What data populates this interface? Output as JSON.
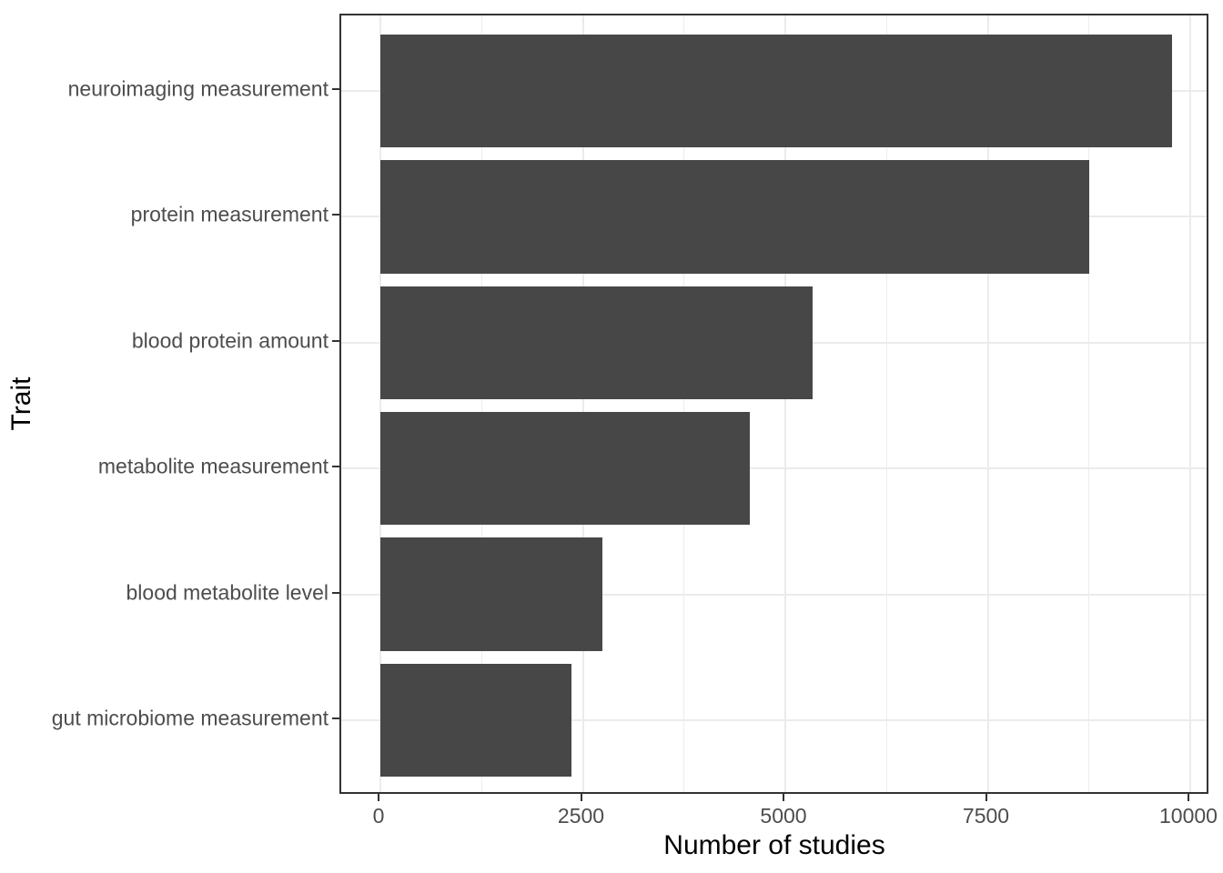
{
  "figure": {
    "background": "#ffffff"
  },
  "chart_data": {
    "type": "bar",
    "orientation": "horizontal",
    "title": "",
    "xlabel": "Number of studies",
    "ylabel": "Trait",
    "categories": [
      "neuroimaging measurement",
      "protein measurement",
      "blood protein amount",
      "metabolite measurement",
      "blood metabolite level",
      "gut microbiome measurement"
    ],
    "values": [
      9780,
      8750,
      5340,
      4560,
      2740,
      2360
    ],
    "xlim": [
      0,
      10000
    ],
    "x_ticks": [
      0,
      2500,
      5000,
      7500,
      10000
    ],
    "x_tick_labels": [
      "0",
      "2500",
      "5000",
      "7500",
      "10000"
    ],
    "x_minor_ticks": [
      1250,
      3750,
      6250,
      8750
    ],
    "grid": "major-x, minor-x, major-y",
    "legend": false,
    "colors": {
      "bar": "#474747",
      "panel_border": "#333333",
      "grid_major": "#ebebeb",
      "grid_minor": "#ededed",
      "axis_text": "#4d4d4d",
      "axis_title": "#000000",
      "tick_mark": "#333333",
      "background": "#ffffff"
    }
  }
}
